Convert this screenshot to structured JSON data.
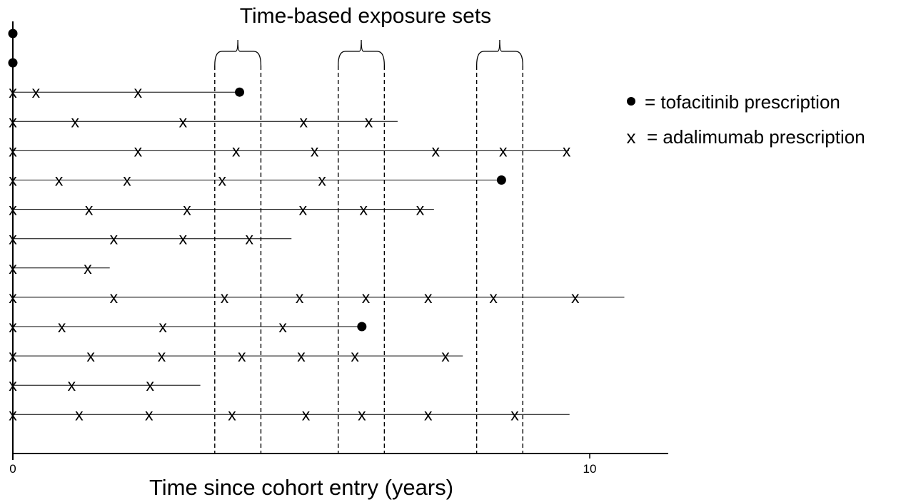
{
  "title": "Time-based exposure sets",
  "xlabel": "Time since cohort entry (years)",
  "ticks": [
    {
      "value": 0,
      "label": "0"
    },
    {
      "value": 10,
      "label": "10"
    }
  ],
  "legend": [
    {
      "symbol": "dot",
      "text": "= tofacitinib prescription"
    },
    {
      "symbol": "cross",
      "glyph": "x",
      "text": "= adalimumab prescription"
    }
  ],
  "exposure_sets": [
    {
      "start": 3.5,
      "end": 4.3
    },
    {
      "start": 5.64,
      "end": 6.44
    },
    {
      "start": 8.04,
      "end": 8.84
    }
  ],
  "patients": [
    {
      "end": 0,
      "x_marks": [],
      "dots": [
        0
      ]
    },
    {
      "end": 0,
      "x_marks": [],
      "dots": [
        0
      ]
    },
    {
      "end": 3.93,
      "x_marks": [
        0,
        0.4,
        2.17
      ],
      "dots": [
        3.93
      ]
    },
    {
      "end": 6.67,
      "x_marks": [
        0,
        1.08,
        2.95,
        5.04,
        6.17
      ],
      "dots": []
    },
    {
      "end": 9.64,
      "x_marks": [
        0,
        2.17,
        3.87,
        5.23,
        7.33,
        8.5,
        9.6
      ],
      "dots": []
    },
    {
      "end": 8.47,
      "x_marks": [
        0,
        0.8,
        1.98,
        3.63,
        5.36
      ],
      "dots": [
        8.47
      ]
    },
    {
      "end": 7.3,
      "x_marks": [
        0,
        1.32,
        3.02,
        5.03,
        6.08,
        7.06
      ],
      "dots": []
    },
    {
      "end": 4.83,
      "x_marks": [
        0,
        1.75,
        2.95,
        4.1
      ],
      "dots": []
    },
    {
      "end": 1.68,
      "x_marks": [
        0,
        1.3
      ],
      "dots": []
    },
    {
      "end": 10.6,
      "x_marks": [
        0,
        1.75,
        3.67,
        4.97,
        6.12,
        7.2,
        8.33,
        9.75
      ],
      "dots": []
    },
    {
      "end": 6.05,
      "x_marks": [
        0,
        0.85,
        2.6,
        4.68
      ],
      "dots": [
        6.05
      ]
    },
    {
      "end": 7.8,
      "x_marks": [
        0,
        1.35,
        2.58,
        3.97,
        5.0,
        5.93,
        7.5
      ],
      "dots": []
    },
    {
      "end": 3.25,
      "x_marks": [
        0,
        1.02,
        2.38
      ],
      "dots": []
    },
    {
      "end": 9.65,
      "x_marks": [
        0,
        1.15,
        2.36,
        3.8,
        5.08,
        6.05,
        7.2,
        8.7
      ],
      "dots": []
    }
  ]
}
